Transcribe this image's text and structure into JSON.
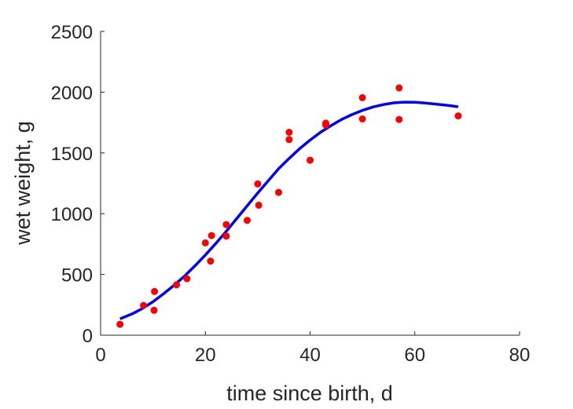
{
  "chart_data": {
    "type": "scatter",
    "xlabel": "time since birth, d",
    "ylabel": "wet weight, g",
    "xlim": [
      0,
      80
    ],
    "ylim": [
      0,
      2500
    ],
    "xticks": [
      0,
      20,
      40,
      60,
      80
    ],
    "yticks": [
      0,
      500,
      1000,
      1500,
      2000,
      2500
    ],
    "grid": false,
    "series": [
      {
        "kind": "points",
        "color": "#ff0000",
        "points": [
          [
            3.7,
            90
          ],
          [
            8.2,
            245
          ],
          [
            10.2,
            205
          ],
          [
            10.3,
            360
          ],
          [
            14.5,
            415
          ],
          [
            16.5,
            465
          ],
          [
            20.0,
            760
          ],
          [
            21.0,
            610
          ],
          [
            21.2,
            820
          ],
          [
            24.0,
            910
          ],
          [
            24.0,
            815
          ],
          [
            28.0,
            945
          ],
          [
            30.0,
            1245
          ],
          [
            30.2,
            1070
          ],
          [
            34.0,
            1175
          ],
          [
            36.0,
            1670
          ],
          [
            36.0,
            1610
          ],
          [
            40.0,
            1440
          ],
          [
            43.0,
            1745
          ],
          [
            43.0,
            1730
          ],
          [
            50.0,
            1955
          ],
          [
            50.0,
            1780
          ],
          [
            57.0,
            2035
          ],
          [
            57.0,
            1775
          ],
          [
            68.3,
            1805
          ]
        ]
      },
      {
        "kind": "line",
        "color": "#0000ff",
        "points": [
          [
            3.7,
            135
          ],
          [
            6,
            175
          ],
          [
            8,
            220
          ],
          [
            10,
            275
          ],
          [
            12,
            340
          ],
          [
            14,
            410
          ],
          [
            16,
            485
          ],
          [
            18,
            570
          ],
          [
            20,
            660
          ],
          [
            22,
            755
          ],
          [
            24,
            855
          ],
          [
            26,
            960
          ],
          [
            28,
            1065
          ],
          [
            30,
            1170
          ],
          [
            32,
            1270
          ],
          [
            34,
            1370
          ],
          [
            36,
            1455
          ],
          [
            38,
            1535
          ],
          [
            40,
            1605
          ],
          [
            42,
            1670
          ],
          [
            44,
            1725
          ],
          [
            46,
            1775
          ],
          [
            48,
            1815
          ],
          [
            50,
            1850
          ],
          [
            52,
            1878
          ],
          [
            54,
            1898
          ],
          [
            56,
            1912
          ],
          [
            58,
            1918
          ],
          [
            60,
            1917
          ],
          [
            62,
            1910
          ],
          [
            64,
            1902
          ],
          [
            66,
            1893
          ],
          [
            68.3,
            1880
          ]
        ]
      }
    ]
  }
}
